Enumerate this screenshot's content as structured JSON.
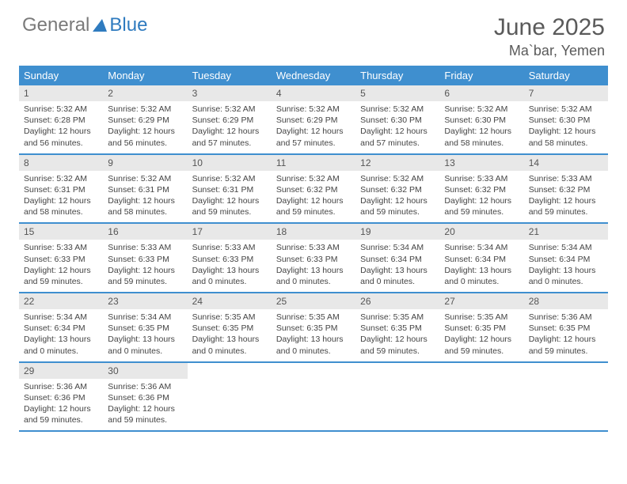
{
  "logo": {
    "text1": "General",
    "text2": "Blue"
  },
  "title": "June 2025",
  "location": "Ma`bar, Yemen",
  "colors": {
    "header_bg": "#3f8fcf",
    "daynum_bg": "#e8e8e8",
    "text_gray": "#5a5a5a",
    "logo_blue": "#2f7bbf"
  },
  "weekdays": [
    "Sunday",
    "Monday",
    "Tuesday",
    "Wednesday",
    "Thursday",
    "Friday",
    "Saturday"
  ],
  "weeks": [
    [
      {
        "n": "1",
        "sr": "5:32 AM",
        "ss": "6:28 PM",
        "dl": "12 hours and 56 minutes."
      },
      {
        "n": "2",
        "sr": "5:32 AM",
        "ss": "6:29 PM",
        "dl": "12 hours and 56 minutes."
      },
      {
        "n": "3",
        "sr": "5:32 AM",
        "ss": "6:29 PM",
        "dl": "12 hours and 57 minutes."
      },
      {
        "n": "4",
        "sr": "5:32 AM",
        "ss": "6:29 PM",
        "dl": "12 hours and 57 minutes."
      },
      {
        "n": "5",
        "sr": "5:32 AM",
        "ss": "6:30 PM",
        "dl": "12 hours and 57 minutes."
      },
      {
        "n": "6",
        "sr": "5:32 AM",
        "ss": "6:30 PM",
        "dl": "12 hours and 58 minutes."
      },
      {
        "n": "7",
        "sr": "5:32 AM",
        "ss": "6:30 PM",
        "dl": "12 hours and 58 minutes."
      }
    ],
    [
      {
        "n": "8",
        "sr": "5:32 AM",
        "ss": "6:31 PM",
        "dl": "12 hours and 58 minutes."
      },
      {
        "n": "9",
        "sr": "5:32 AM",
        "ss": "6:31 PM",
        "dl": "12 hours and 58 minutes."
      },
      {
        "n": "10",
        "sr": "5:32 AM",
        "ss": "6:31 PM",
        "dl": "12 hours and 59 minutes."
      },
      {
        "n": "11",
        "sr": "5:32 AM",
        "ss": "6:32 PM",
        "dl": "12 hours and 59 minutes."
      },
      {
        "n": "12",
        "sr": "5:32 AM",
        "ss": "6:32 PM",
        "dl": "12 hours and 59 minutes."
      },
      {
        "n": "13",
        "sr": "5:33 AM",
        "ss": "6:32 PM",
        "dl": "12 hours and 59 minutes."
      },
      {
        "n": "14",
        "sr": "5:33 AM",
        "ss": "6:32 PM",
        "dl": "12 hours and 59 minutes."
      }
    ],
    [
      {
        "n": "15",
        "sr": "5:33 AM",
        "ss": "6:33 PM",
        "dl": "12 hours and 59 minutes."
      },
      {
        "n": "16",
        "sr": "5:33 AM",
        "ss": "6:33 PM",
        "dl": "12 hours and 59 minutes."
      },
      {
        "n": "17",
        "sr": "5:33 AM",
        "ss": "6:33 PM",
        "dl": "13 hours and 0 minutes."
      },
      {
        "n": "18",
        "sr": "5:33 AM",
        "ss": "6:33 PM",
        "dl": "13 hours and 0 minutes."
      },
      {
        "n": "19",
        "sr": "5:34 AM",
        "ss": "6:34 PM",
        "dl": "13 hours and 0 minutes."
      },
      {
        "n": "20",
        "sr": "5:34 AM",
        "ss": "6:34 PM",
        "dl": "13 hours and 0 minutes."
      },
      {
        "n": "21",
        "sr": "5:34 AM",
        "ss": "6:34 PM",
        "dl": "13 hours and 0 minutes."
      }
    ],
    [
      {
        "n": "22",
        "sr": "5:34 AM",
        "ss": "6:34 PM",
        "dl": "13 hours and 0 minutes."
      },
      {
        "n": "23",
        "sr": "5:34 AM",
        "ss": "6:35 PM",
        "dl": "13 hours and 0 minutes."
      },
      {
        "n": "24",
        "sr": "5:35 AM",
        "ss": "6:35 PM",
        "dl": "13 hours and 0 minutes."
      },
      {
        "n": "25",
        "sr": "5:35 AM",
        "ss": "6:35 PM",
        "dl": "13 hours and 0 minutes."
      },
      {
        "n": "26",
        "sr": "5:35 AM",
        "ss": "6:35 PM",
        "dl": "12 hours and 59 minutes."
      },
      {
        "n": "27",
        "sr": "5:35 AM",
        "ss": "6:35 PM",
        "dl": "12 hours and 59 minutes."
      },
      {
        "n": "28",
        "sr": "5:36 AM",
        "ss": "6:35 PM",
        "dl": "12 hours and 59 minutes."
      }
    ],
    [
      {
        "n": "29",
        "sr": "5:36 AM",
        "ss": "6:36 PM",
        "dl": "12 hours and 59 minutes."
      },
      {
        "n": "30",
        "sr": "5:36 AM",
        "ss": "6:36 PM",
        "dl": "12 hours and 59 minutes."
      },
      null,
      null,
      null,
      null,
      null
    ]
  ],
  "labels": {
    "sunrise": "Sunrise:",
    "sunset": "Sunset:",
    "daylight": "Daylight:"
  }
}
